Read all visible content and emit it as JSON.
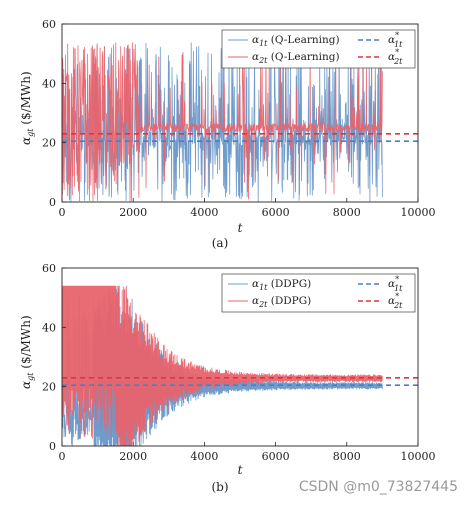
{
  "watermark": "CSDN @m0_73827445",
  "colors": {
    "agent1": "#6f9ccc",
    "agent2": "#e8636b",
    "axis": "#222222"
  },
  "chart_data": [
    {
      "type": "line",
      "caption": "(a)",
      "xlabel": "t",
      "ylabel": "α_gt ($/MWh)",
      "xlim": [
        0,
        10000
      ],
      "ylim": [
        0,
        60
      ],
      "xticks": [
        0,
        2000,
        4000,
        6000,
        8000,
        10000
      ],
      "yticks": [
        0,
        20,
        40,
        60
      ],
      "legend_position": "top-right",
      "legend": [
        "α_1t (Q-Learning)",
        "α_2t (Q-Learning)",
        "α*_1t",
        "α*_2t"
      ],
      "series": [
        {
          "name": "α_1t (Q-Learning)",
          "style": "noisy",
          "x_range": [
            0,
            9000
          ],
          "level_after_learning": 21,
          "range_early": [
            0,
            54
          ]
        },
        {
          "name": "α_2t (Q-Learning)",
          "style": "noisy",
          "x_range": [
            0,
            9000
          ],
          "level_after_learning": 25,
          "range_early": [
            0,
            54
          ]
        },
        {
          "name": "α*_1t",
          "style": "dashed",
          "value": 20.5
        },
        {
          "name": "α*_2t",
          "style": "dashed",
          "value": 23
        }
      ]
    },
    {
      "type": "line",
      "caption": "(b)",
      "xlabel": "t",
      "ylabel": "α_gt ($/MWh)",
      "xlim": [
        0,
        10000
      ],
      "ylim": [
        0,
        60
      ],
      "xticks": [
        0,
        2000,
        4000,
        6000,
        8000,
        10000
      ],
      "yticks": [
        0,
        20,
        40,
        60
      ],
      "legend_position": "top-right",
      "legend": [
        "α_1t (DDPG)",
        "α_2t (DDPG)",
        "α*_1t",
        "α*_2t"
      ],
      "series": [
        {
          "name": "α_1t (DDPG)",
          "style": "converging",
          "x_range": [
            0,
            9000
          ],
          "converges_to": 20.3
        },
        {
          "name": "α_2t (DDPG)",
          "style": "converging",
          "x_range": [
            0,
            9000
          ],
          "converges_to": 22.8
        },
        {
          "name": "α*_1t",
          "style": "dashed",
          "value": 20.5
        },
        {
          "name": "α*_2t",
          "style": "dashed",
          "value": 23
        }
      ]
    }
  ]
}
